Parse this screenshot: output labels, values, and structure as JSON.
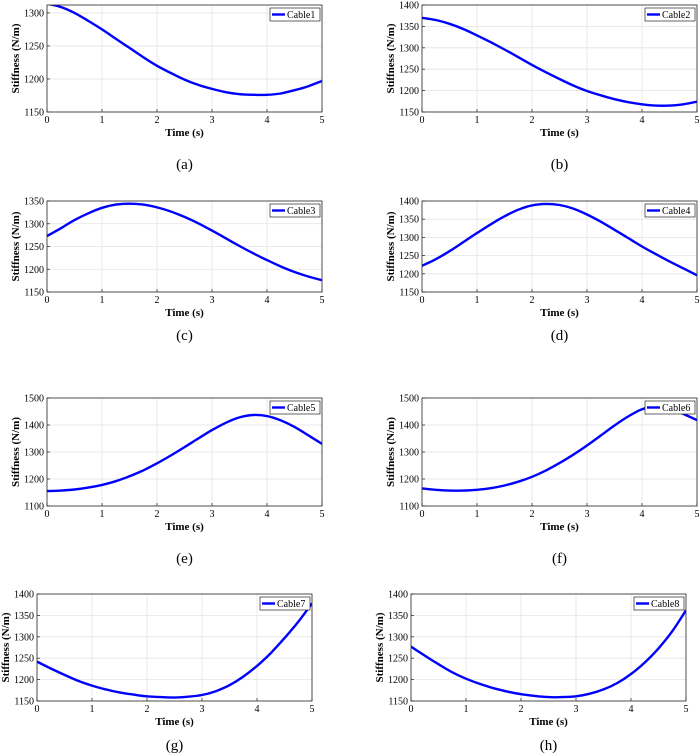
{
  "chart_data": [
    {
      "type": "line",
      "caption": "(a)",
      "xlabel": "Time (s)",
      "ylabel": "Stiffness (N/m)",
      "xlim": [
        0,
        5
      ],
      "ylim": [
        1150,
        1312
      ],
      "xticks": [
        "0",
        "1",
        "2",
        "3",
        "4",
        "5"
      ],
      "yticks": [
        "1150",
        "1200",
        "1250",
        "1300"
      ],
      "grid": true,
      "legend_position": "top-right",
      "series": [
        {
          "name": "Cable1",
          "color": "#0000ff",
          "x": [
            0,
            0.25,
            0.5,
            0.75,
            1,
            1.25,
            1.5,
            1.75,
            2,
            2.25,
            2.5,
            2.75,
            3,
            3.25,
            3.5,
            3.75,
            4,
            4.25,
            4.5,
            4.75,
            5
          ],
          "y": [
            1314,
            1309,
            1300,
            1288,
            1275,
            1261,
            1247,
            1233,
            1220,
            1209,
            1199,
            1191,
            1185,
            1180,
            1177,
            1176,
            1176,
            1178,
            1183,
            1189,
            1197
          ]
        }
      ]
    },
    {
      "type": "line",
      "caption": "(b)",
      "xlabel": "Time (s)",
      "ylabel": "Stiffness (N/m)",
      "xlim": [
        0,
        5
      ],
      "ylim": [
        1150,
        1400
      ],
      "xticks": [
        "0",
        "1",
        "2",
        "3",
        "4",
        "5"
      ],
      "yticks": [
        "1150",
        "1200",
        "1250",
        "1300",
        "1350",
        "1400"
      ],
      "grid": true,
      "legend_position": "top-right",
      "series": [
        {
          "name": "Cable2",
          "color": "#0000ff",
          "x": [
            0,
            0.25,
            0.5,
            0.75,
            1,
            1.25,
            1.5,
            1.75,
            2,
            2.25,
            2.5,
            2.75,
            3,
            3.25,
            3.5,
            3.75,
            4,
            4.25,
            4.5,
            4.75,
            5
          ],
          "y": [
            1370,
            1365,
            1356,
            1344,
            1329,
            1313,
            1296,
            1278,
            1260,
            1243,
            1227,
            1212,
            1199,
            1189,
            1180,
            1173,
            1168,
            1165,
            1165,
            1168,
            1174
          ]
        }
      ]
    },
    {
      "type": "line",
      "caption": "(c)",
      "xlabel": "Time (s)",
      "ylabel": "Stiffness (N/m)",
      "xlim": [
        0,
        5
      ],
      "ylim": [
        1150,
        1350
      ],
      "xticks": [
        "0",
        "1",
        "2",
        "3",
        "4",
        "5"
      ],
      "yticks": [
        "1150",
        "1200",
        "1250",
        "1300",
        "1350"
      ],
      "grid": true,
      "legend_position": "top-right",
      "series": [
        {
          "name": "Cable3",
          "color": "#0000ff",
          "x": [
            0,
            0.25,
            0.5,
            0.75,
            1,
            1.25,
            1.5,
            1.75,
            2,
            2.25,
            2.5,
            2.75,
            3,
            3.25,
            3.5,
            3.75,
            4,
            4.25,
            4.5,
            4.75,
            5
          ],
          "y": [
            1273,
            1290,
            1308,
            1323,
            1335,
            1342,
            1344,
            1342,
            1336,
            1327,
            1315,
            1301,
            1285,
            1268,
            1251,
            1235,
            1220,
            1206,
            1194,
            1184,
            1176
          ]
        }
      ]
    },
    {
      "type": "line",
      "caption": "(d)",
      "xlabel": "Time (s)",
      "ylabel": "Stiffness (N/m)",
      "xlim": [
        0,
        5
      ],
      "ylim": [
        1150,
        1400
      ],
      "xticks": [
        "0",
        "1",
        "2",
        "3",
        "4",
        "5"
      ],
      "yticks": [
        "1150",
        "1200",
        "1250",
        "1300",
        "1350",
        "1400"
      ],
      "grid": true,
      "legend_position": "top-right",
      "series": [
        {
          "name": "Cable4",
          "color": "#0000ff",
          "x": [
            0,
            0.25,
            0.5,
            0.75,
            1,
            1.25,
            1.5,
            1.75,
            2,
            2.25,
            2.5,
            2.75,
            3,
            3.25,
            3.5,
            3.75,
            4,
            4.25,
            4.5,
            4.75,
            5
          ],
          "y": [
            1222,
            1240,
            1262,
            1287,
            1312,
            1336,
            1358,
            1376,
            1388,
            1392,
            1389,
            1379,
            1363,
            1343,
            1321,
            1298,
            1275,
            1254,
            1234,
            1215,
            1196
          ]
        }
      ]
    },
    {
      "type": "line",
      "caption": "(e)",
      "xlabel": "Time (s)",
      "ylabel": "Stiffness (N/m)",
      "xlim": [
        0,
        5
      ],
      "ylim": [
        1100,
        1500
      ],
      "xticks": [
        "0",
        "1",
        "2",
        "3",
        "4",
        "5"
      ],
      "yticks": [
        "1100",
        "1200",
        "1300",
        "1400",
        "1500"
      ],
      "grid": true,
      "legend_position": "top-right",
      "series": [
        {
          "name": "Cable5",
          "color": "#0000ff",
          "x": [
            0,
            0.25,
            0.5,
            0.75,
            1,
            1.25,
            1.5,
            1.75,
            2,
            2.25,
            2.5,
            2.75,
            3,
            3.25,
            3.5,
            3.75,
            4,
            4.25,
            4.5,
            4.75,
            5
          ],
          "y": [
            1155,
            1157,
            1161,
            1168,
            1178,
            1192,
            1210,
            1232,
            1258,
            1287,
            1318,
            1350,
            1381,
            1408,
            1428,
            1437,
            1433,
            1417,
            1393,
            1362,
            1330
          ]
        }
      ]
    },
    {
      "type": "line",
      "caption": "(f)",
      "xlabel": "Time (s)",
      "ylabel": "Stiffness (N/m)",
      "xlim": [
        0,
        5
      ],
      "ylim": [
        1100,
        1500
      ],
      "xticks": [
        "0",
        "1",
        "2",
        "3",
        "4",
        "5"
      ],
      "yticks": [
        "1100",
        "1200",
        "1300",
        "1400",
        "1500"
      ],
      "grid": true,
      "legend_position": "top-right",
      "series": [
        {
          "name": "Cable6",
          "color": "#0000ff",
          "x": [
            0,
            0.25,
            0.5,
            0.75,
            1,
            1.25,
            1.5,
            1.75,
            2,
            2.25,
            2.5,
            2.75,
            3,
            3.25,
            3.5,
            3.75,
            4,
            4.25,
            4.5,
            4.75,
            5
          ],
          "y": [
            1165,
            1160,
            1157,
            1157,
            1160,
            1166,
            1176,
            1190,
            1208,
            1231,
            1259,
            1290,
            1324,
            1361,
            1398,
            1432,
            1458,
            1468,
            1461,
            1441,
            1418
          ]
        }
      ]
    },
    {
      "type": "line",
      "caption": "(g)",
      "xlabel": "Time (s)",
      "ylabel": "Stiffness (N/m)",
      "xlim": [
        0,
        5
      ],
      "ylim": [
        1150,
        1400
      ],
      "xticks": [
        "0",
        "1",
        "2",
        "3",
        "4",
        "5"
      ],
      "yticks": [
        "1150",
        "1200",
        "1250",
        "1300",
        "1350",
        "1400"
      ],
      "grid": true,
      "legend_position": "top-right",
      "series": [
        {
          "name": "Cable7",
          "color": "#0000ff",
          "x": [
            0,
            0.25,
            0.5,
            0.75,
            1,
            1.25,
            1.5,
            1.75,
            2,
            2.25,
            2.5,
            2.75,
            3,
            3.25,
            3.5,
            3.75,
            4,
            4.25,
            4.5,
            4.75,
            5
          ],
          "y": [
            1242,
            1226,
            1211,
            1197,
            1186,
            1177,
            1170,
            1165,
            1161,
            1159,
            1158,
            1160,
            1164,
            1173,
            1187,
            1207,
            1232,
            1262,
            1297,
            1335,
            1378
          ]
        }
      ]
    },
    {
      "type": "line",
      "caption": "(h)",
      "xlabel": "Time (s)",
      "ylabel": "Stiffness (N/m)",
      "xlim": [
        0,
        5
      ],
      "ylim": [
        1150,
        1400
      ],
      "xticks": [
        "0",
        "1",
        "2",
        "3",
        "4",
        "5"
      ],
      "yticks": [
        "1150",
        "1200",
        "1250",
        "1300",
        "1350",
        "1400"
      ],
      "grid": true,
      "legend_position": "top-right",
      "series": [
        {
          "name": "Cable8",
          "color": "#0000ff",
          "x": [
            0,
            0.25,
            0.5,
            0.75,
            1,
            1.25,
            1.5,
            1.75,
            2,
            2.25,
            2.5,
            2.75,
            3,
            3.25,
            3.5,
            3.75,
            4,
            4.25,
            4.5,
            4.75,
            5
          ],
          "y": [
            1277,
            1256,
            1236,
            1217,
            1202,
            1190,
            1180,
            1172,
            1166,
            1162,
            1159,
            1159,
            1161,
            1167,
            1177,
            1192,
            1213,
            1240,
            1273,
            1313,
            1362
          ]
        }
      ]
    }
  ]
}
